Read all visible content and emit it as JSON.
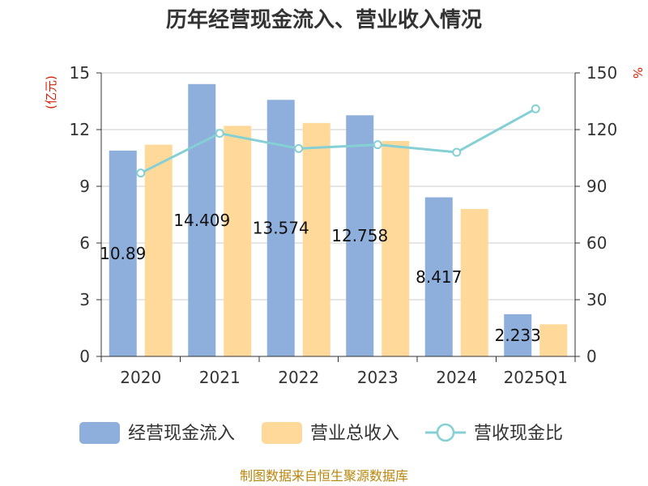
{
  "chart_data": {
    "type": "bar",
    "title": "历年经营现金流入、营业收入情况",
    "categories": [
      "2020",
      "2021",
      "2022",
      "2023",
      "2024",
      "2025Q1"
    ],
    "y_left": {
      "unit": "(亿元)",
      "ticks": [
        "0",
        "3",
        "6",
        "9",
        "12",
        "15"
      ],
      "range": [
        0,
        15
      ]
    },
    "y_right": {
      "unit": "%",
      "ticks": [
        "0",
        "30",
        "60",
        "90",
        "120",
        "150"
      ],
      "range": [
        0,
        150
      ]
    },
    "grid": true,
    "legend_position": "bottom",
    "series": [
      {
        "name": "经营现金流入",
        "kind": "bar",
        "axis": "left",
        "color": "#8eaedb",
        "values": [
          10.89,
          14.409,
          13.574,
          12.758,
          8.417,
          2.233
        ],
        "labels": [
          "10.89",
          "14.409",
          "13.574",
          "12.758",
          "8.417",
          "2.233"
        ]
      },
      {
        "name": "营业总收入",
        "kind": "bar",
        "axis": "left",
        "color": "#ffd99a",
        "values": [
          11.2,
          12.2,
          12.35,
          11.4,
          7.8,
          1.7
        ]
      },
      {
        "name": "营收现金比",
        "kind": "line",
        "axis": "right",
        "color": "#85d0d5",
        "values": [
          97,
          118,
          110,
          112,
          108,
          131
        ]
      }
    ]
  },
  "footer": {
    "source": "制图数据来自恒生聚源数据库"
  }
}
